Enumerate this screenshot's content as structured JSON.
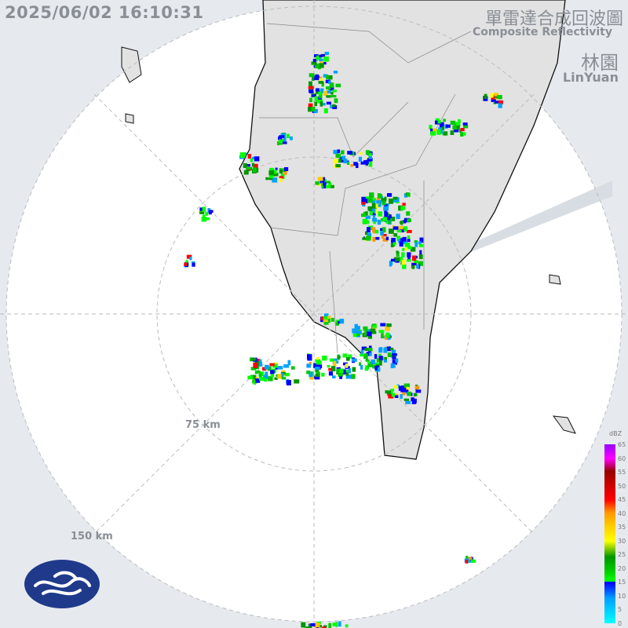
{
  "timestamp": "2025/06/02 16:10:31",
  "title": {
    "zh": "單雷達合成回波圖",
    "en": "Composite Reflectivity"
  },
  "site": {
    "zh": "林園",
    "en": "LinYuan"
  },
  "rings": [
    {
      "label": "75 km"
    },
    {
      "label": "150 km"
    }
  ],
  "legend": {
    "unit": "dBZ",
    "ticks": [
      "65",
      "60",
      "55",
      "50",
      "45",
      "40",
      "35",
      "30",
      "25",
      "20",
      "15",
      "10",
      "5",
      "0"
    ]
  },
  "colors": {
    "coverage": "#ffffff",
    "outside": "#e6eaef",
    "land": "#e2e2e2",
    "coast": "#111111"
  },
  "logo": "cwa-logo"
}
